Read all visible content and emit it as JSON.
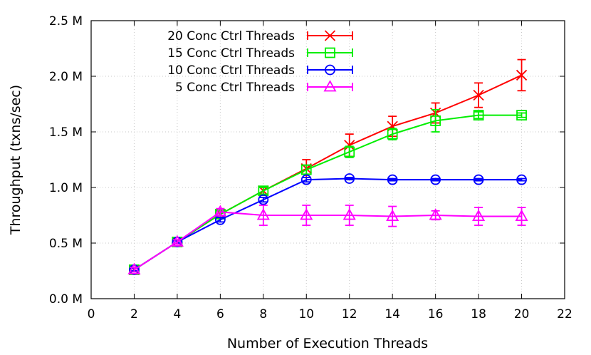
{
  "chart_data": {
    "type": "line",
    "title": "",
    "xlabel": "Number of Execution Threads",
    "ylabel": "Throughput (txns/sec)",
    "xlim": [
      0,
      22
    ],
    "ylim": [
      0,
      2.5
    ],
    "xticks": [
      0,
      2,
      4,
      6,
      8,
      10,
      12,
      14,
      16,
      18,
      20,
      22
    ],
    "xtick_labels": [
      "0",
      "2",
      "4",
      "6",
      "8",
      "10",
      "12",
      "14",
      "16",
      "18",
      "20",
      "22"
    ],
    "yticks": [
      0,
      0.5,
      1.0,
      1.5,
      2.0,
      2.5
    ],
    "ytick_labels": [
      "0.0 M",
      "0.5 M",
      "1.0 M",
      "1.5 M",
      "2.0 M",
      "2.5 M"
    ],
    "grid": true,
    "legend_position": "top-left",
    "x": [
      2,
      4,
      6,
      8,
      10,
      12,
      14,
      16,
      18,
      20
    ],
    "series": [
      {
        "name": "20 Conc Ctrl Threads",
        "color": "#ff0000",
        "marker": "x",
        "values": [
          0.26,
          0.51,
          0.76,
          0.97,
          1.17,
          1.38,
          1.55,
          1.67,
          1.83,
          2.01
        ],
        "errors": [
          0.02,
          0.02,
          0.03,
          0.03,
          0.08,
          0.1,
          0.09,
          0.09,
          0.11,
          0.14
        ]
      },
      {
        "name": "15 Conc Ctrl Threads",
        "color": "#00ee00",
        "marker": "square",
        "values": [
          0.26,
          0.51,
          0.76,
          0.97,
          1.16,
          1.32,
          1.48,
          1.6,
          1.65,
          1.65
        ],
        "errors": [
          0.02,
          0.02,
          0.03,
          0.03,
          0.04,
          0.05,
          0.05,
          0.1,
          0.03,
          0.02
        ]
      },
      {
        "name": "10 Conc Ctrl Threads",
        "color": "#0000ff",
        "marker": "circle",
        "values": [
          0.26,
          0.51,
          0.71,
          0.89,
          1.07,
          1.08,
          1.07,
          1.07,
          1.07,
          1.07
        ],
        "errors": [
          0.01,
          0.01,
          0.02,
          0.02,
          0.02,
          0.01,
          0.01,
          0.01,
          0.01,
          0.01
        ]
      },
      {
        "name": "5 Conc Ctrl Threads",
        "color": "#ff00ff",
        "marker": "triangle",
        "values": [
          0.26,
          0.51,
          0.78,
          0.75,
          0.75,
          0.75,
          0.74,
          0.75,
          0.74,
          0.74
        ],
        "errors": [
          0.02,
          0.02,
          0.03,
          0.09,
          0.09,
          0.09,
          0.09,
          0.04,
          0.08,
          0.08
        ]
      }
    ]
  }
}
